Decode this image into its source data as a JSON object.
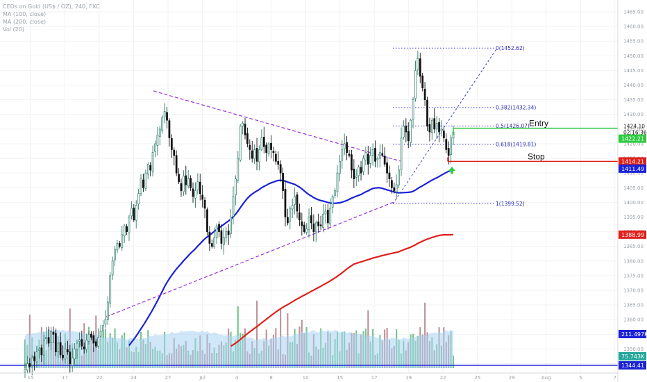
{
  "legend": {
    "title": "CEDs on Gold (US$ / OZ), 240, FXC",
    "ma1": "MA (100, close)",
    "ma2": "MA (200, close)",
    "vol": "Vol (20)"
  },
  "colors": {
    "up": "#26a69a",
    "down": "#111111",
    "ma100": "#1a22d6",
    "ma200": "#e0201b",
    "trend": "#9b30d9",
    "fib": "#3b3bd8",
    "entry": "#2ecc40",
    "stop": "#e0201b",
    "vol_up": "#5cb878",
    "vol_down": "#b07b86",
    "vol_ma": "#a8d4f2",
    "hline": "#1a22d6",
    "arrow": "#2ecc40"
  },
  "labels": {
    "entry": "Entry",
    "stop": "Stop",
    "countdown": "02:16:36"
  },
  "badges": {
    "current_price": "1424.10",
    "entry_price": "1422.21",
    "stop_price": "1414.21",
    "ma100_price": "1411.49",
    "ma200_price": "1388.99",
    "hline_price": "1344.41",
    "vol_ma_value": "211.497K",
    "vol_value": "75.743K"
  },
  "chart_data": {
    "type": "candlestick",
    "timeframe": "240",
    "price_axis_ticks": [
      1345,
      1350,
      1355,
      1360,
      1365,
      1370,
      1375,
      1380,
      1385,
      1390,
      1395,
      1400,
      1405,
      1410,
      1415,
      1420,
      1425,
      1430,
      1435,
      1440,
      1445,
      1450,
      1455,
      1460,
      1465
    ],
    "time_axis_ticks": [
      "15",
      "17",
      "22",
      "24",
      "27",
      "Jul",
      "4",
      "8",
      "10",
      "15",
      "17",
      "19",
      "22",
      "25",
      "29",
      "Aug",
      "5",
      "7"
    ],
    "fib_levels": [
      {
        "ratio": "0",
        "label": "0(1452.62)",
        "price": 1452.62
      },
      {
        "ratio": "0.382",
        "label": "0.382(1432.34)",
        "price": 1432.34
      },
      {
        "ratio": "0.5",
        "label": "0.5(1426.07)",
        "price": 1426.07
      },
      {
        "ratio": "0.618",
        "label": "0.618(1419.81)",
        "price": 1419.81
      },
      {
        "ratio": "1",
        "label": "1(1399.52)",
        "price": 1399.52
      }
    ],
    "entry_price": 1422.21,
    "stop_price": 1414.21,
    "current_price": 1424.1,
    "ma100_last": 1411.49,
    "ma200_last": 1388.99,
    "horizontal_line": 1344.41,
    "volume_ma_last": "211.497K",
    "volume_last": "75.743K",
    "closes": [
      1343,
      1345,
      1344,
      1347,
      1346,
      1349,
      1350,
      1348,
      1353,
      1354,
      1352,
      1356,
      1355,
      1349,
      1352,
      1348,
      1347,
      1350,
      1349,
      1345,
      1347,
      1350,
      1352,
      1353,
      1351,
      1350,
      1353,
      1355,
      1354,
      1352,
      1351,
      1354,
      1356,
      1358,
      1360,
      1366,
      1375,
      1380,
      1384,
      1386,
      1385,
      1389,
      1392,
      1390,
      1395,
      1398,
      1394,
      1399,
      1403,
      1408,
      1405,
      1410,
      1413,
      1411,
      1417,
      1420,
      1423,
      1425,
      1429,
      1431,
      1428,
      1422,
      1418,
      1416,
      1410,
      1407,
      1404,
      1409,
      1406,
      1408,
      1405,
      1402,
      1404,
      1407,
      1403,
      1401,
      1398,
      1390,
      1386,
      1385,
      1388,
      1392,
      1390,
      1386,
      1388,
      1390,
      1389,
      1395,
      1402,
      1408,
      1415,
      1426,
      1427,
      1423,
      1420,
      1418,
      1415,
      1418,
      1414,
      1418,
      1422,
      1419,
      1417,
      1420,
      1418,
      1417,
      1414,
      1413,
      1410,
      1404,
      1395,
      1393,
      1398,
      1399,
      1402,
      1397,
      1394,
      1392,
      1390,
      1391,
      1395,
      1393,
      1390,
      1393,
      1392,
      1392,
      1396,
      1397,
      1393,
      1398,
      1402,
      1404,
      1410,
      1414,
      1418,
      1420,
      1417,
      1416,
      1411,
      1408,
      1409,
      1412,
      1410,
      1415,
      1417,
      1413,
      1416,
      1418,
      1414,
      1415,
      1417,
      1416,
      1413,
      1410,
      1408,
      1405,
      1404,
      1406,
      1411,
      1422,
      1426,
      1424,
      1421,
      1428,
      1435,
      1445,
      1449,
      1443,
      1439,
      1435,
      1426,
      1424,
      1428,
      1425,
      1427,
      1424,
      1425,
      1422,
      1418,
      1416,
      1422,
      1424
    ]
  }
}
